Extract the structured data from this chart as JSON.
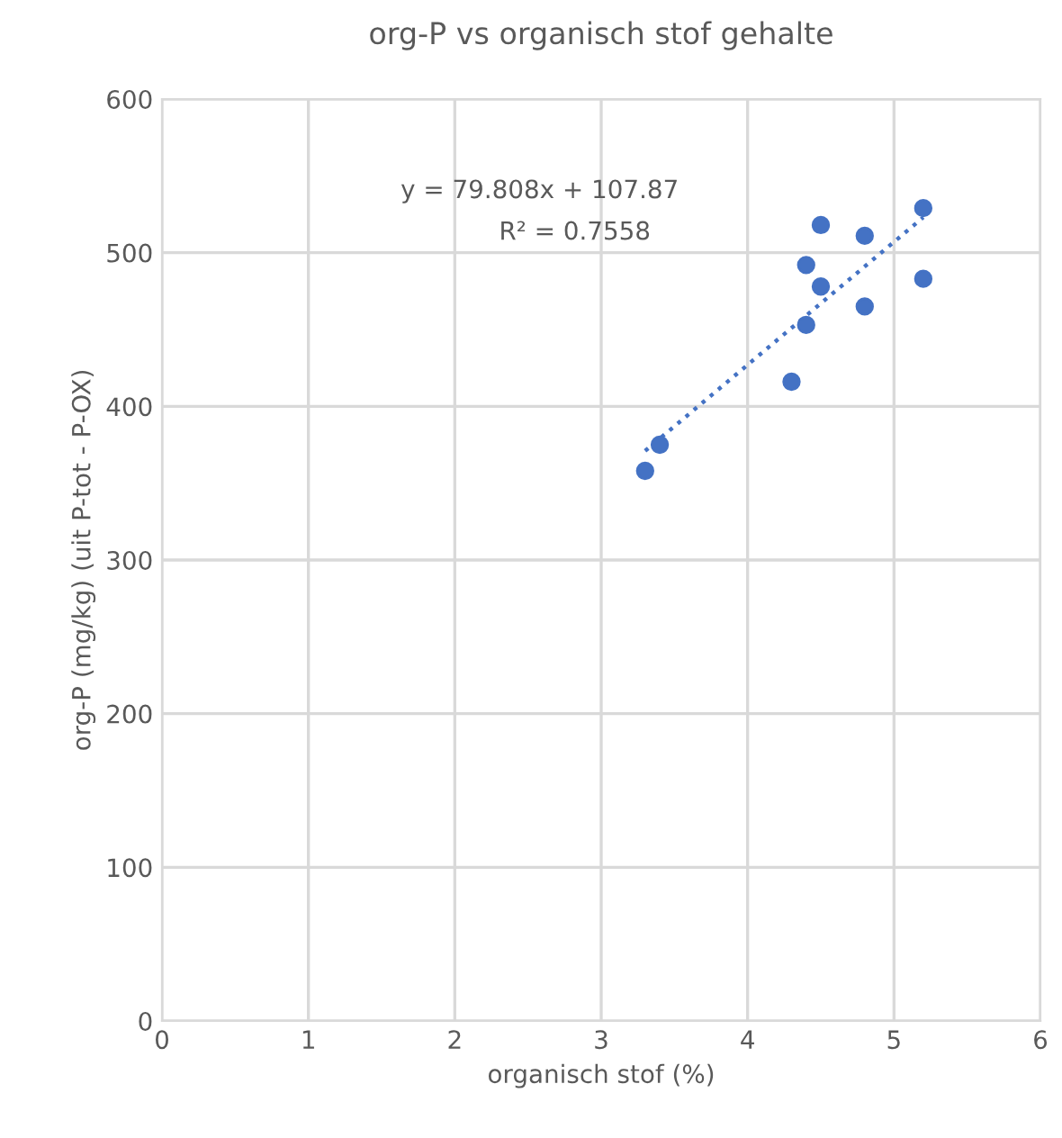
{
  "chart_data": {
    "type": "scatter",
    "title": "org-P vs organisch stof gehalte",
    "xlabel": "organisch stof (%)",
    "ylabel": "org-P (mg/kg) (uit P-tot - P-OX)",
    "series": [
      {
        "color": "#4472c4",
        "x": [
          3.3,
          3.4,
          4.3,
          4.4,
          4.4,
          4.5,
          4.5,
          4.8,
          4.8,
          5.2,
          5.2
        ],
        "values": [
          358,
          375,
          416,
          453,
          492,
          478,
          518,
          465,
          511,
          483,
          529
        ],
        "marker": "circle"
      },
      {
        "type": "line",
        "color": "#4472c4",
        "x": [
          3.3,
          5.2
        ],
        "values": [
          371,
          523
        ],
        "line_style": "dotted",
        "marker": "none"
      }
    ],
    "annotations": [
      "y = 79.808x + 107.87",
      "R² = 0.7558"
    ],
    "xlim": [
      0,
      6
    ],
    "xticks": [
      0,
      1,
      2,
      3,
      4,
      5,
      6
    ],
    "ylim": [
      0,
      600
    ],
    "yticks": [
      0,
      100,
      200,
      300,
      400,
      500,
      600
    ],
    "grid": true,
    "legend": false
  }
}
